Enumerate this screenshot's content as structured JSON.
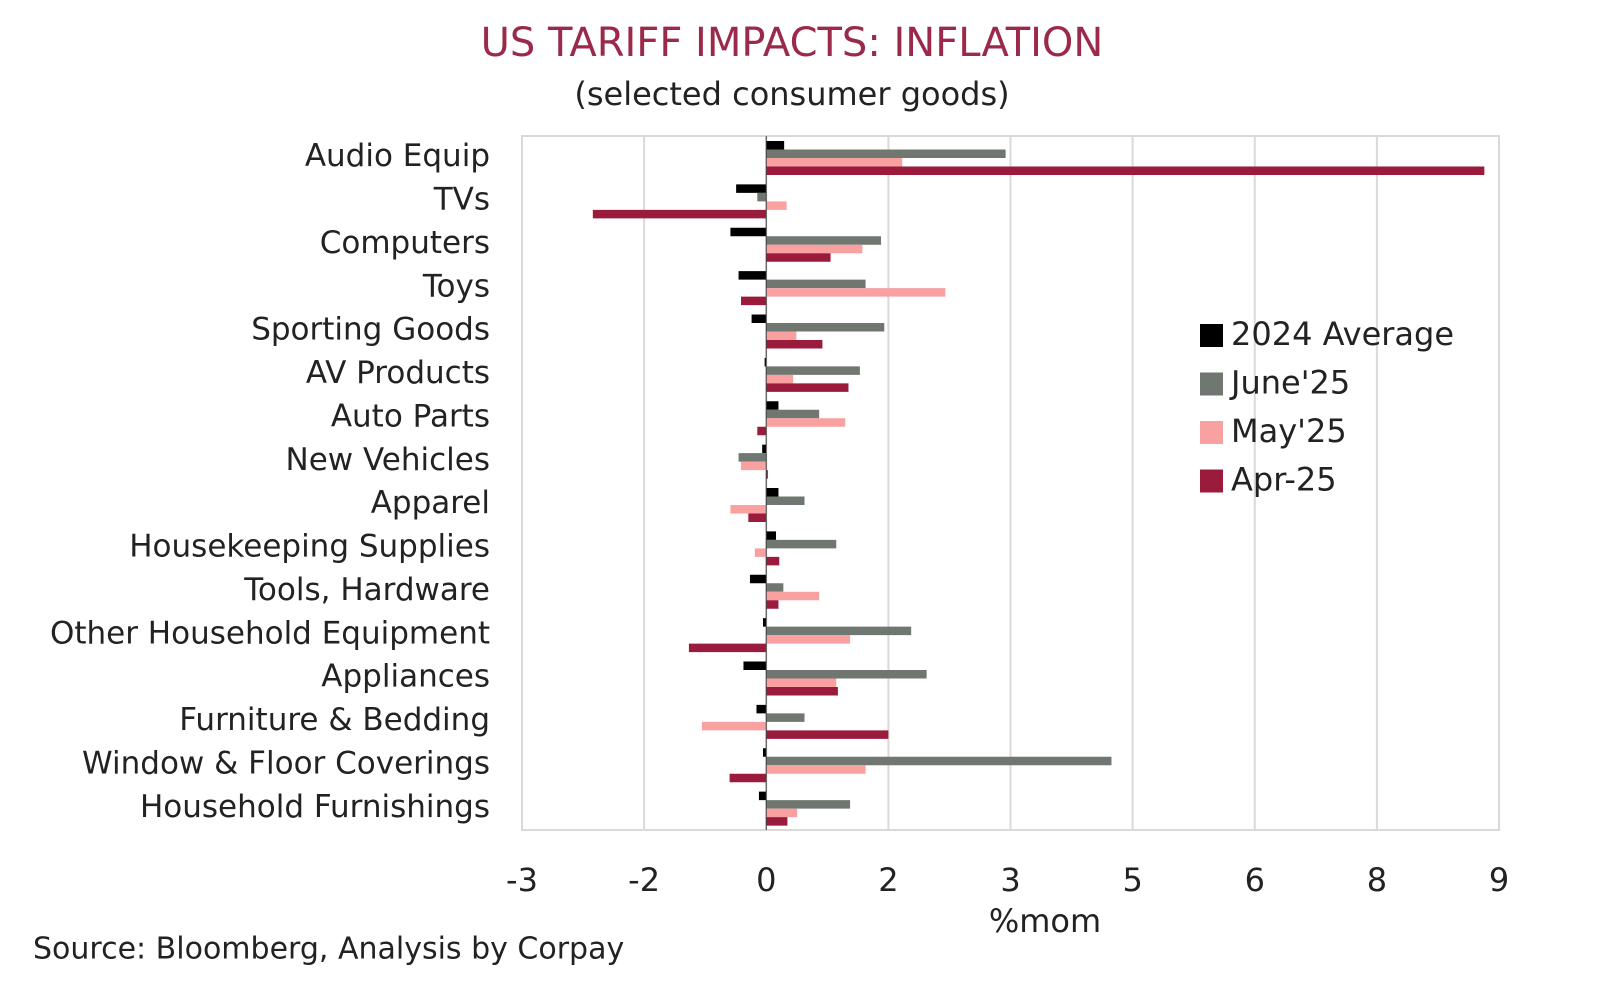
{
  "chart_data": {
    "type": "hbar",
    "title": "US TARIFF IMPACTS: INFLATION",
    "subtitle": "(selected consumer goods)",
    "x_label": "%mom",
    "source": "Source: Bloomberg, Analysis by Corpay",
    "categories": [
      "Audio Equip",
      "TVs",
      "Computers",
      "Toys",
      "Sporting Goods",
      "AV Products",
      "Auto Parts",
      "New Vehicles",
      "Apparel",
      "Housekeeping Supplies",
      "Tools, Hardware",
      "Other Household Equipment",
      "Appliances",
      "Furniture & Bedding",
      "Window & Floor Coverings",
      "Household Furnishings"
    ],
    "series": [
      {
        "name": "2024 Average",
        "color": "#000000",
        "values": [
          0.22,
          -0.37,
          -0.44,
          -0.34,
          -0.18,
          -0.02,
          0.15,
          -0.05,
          0.15,
          0.12,
          -0.2,
          -0.04,
          -0.28,
          -0.12,
          -0.04,
          -0.09
        ]
      },
      {
        "name": "June'25",
        "color": "#6f7770",
        "values": [
          2.94,
          -0.11,
          1.41,
          1.22,
          1.45,
          1.15,
          0.65,
          -0.34,
          0.47,
          0.86,
          0.21,
          1.78,
          1.97,
          0.47,
          4.24,
          1.03
        ]
      },
      {
        "name": "May'25",
        "color": "#f9a0a0",
        "values": [
          1.67,
          0.25,
          1.18,
          2.2,
          0.37,
          0.33,
          0.97,
          -0.31,
          -0.44,
          -0.14,
          0.65,
          1.03,
          0.86,
          -0.79,
          1.22,
          0.38
        ]
      },
      {
        "name": "Apr-25",
        "color": "#9b1b3c",
        "values": [
          8.82,
          -2.13,
          0.79,
          -0.31,
          0.69,
          1.01,
          -0.11,
          0.02,
          -0.22,
          0.16,
          0.15,
          -0.95,
          0.88,
          1.5,
          -0.45,
          0.26
        ]
      }
    ],
    "xlim": [
      -3,
      9
    ],
    "xticks": [
      -3,
      {
        "value": -1.5,
        "label": "-2"
      },
      0,
      {
        "value": 1.5,
        "label": "2"
      },
      3,
      {
        "value": 4.5,
        "label": "5"
      },
      6,
      {
        "value": 7.5,
        "label": "8"
      },
      9
    ],
    "grid": true,
    "legend": "right"
  }
}
